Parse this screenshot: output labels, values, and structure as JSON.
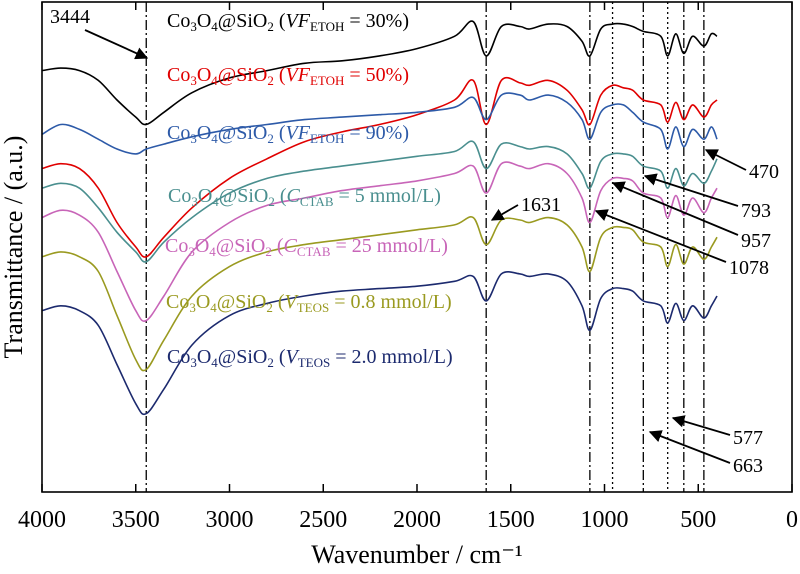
{
  "chart_data": {
    "type": "line",
    "title": "",
    "xlabel": "Wavenumber / cm⁻¹",
    "ylabel": "Transmittance / (a.u.)",
    "xlim": [
      4000,
      0
    ],
    "x_reversed": true,
    "xticks": [
      "4000",
      "3500",
      "3000",
      "2500",
      "2000",
      "1500",
      "1000",
      "500",
      "0"
    ],
    "y_ticks_shown": false,
    "grid": false,
    "reference_lines": [
      {
        "x": 3444,
        "style": "dash-dot"
      },
      {
        "x": 1631,
        "style": "dash-dot"
      },
      {
        "x": 1078,
        "style": "dash-dot"
      },
      {
        "x": 957,
        "style": "dot"
      },
      {
        "x": 793,
        "style": "dash-dot"
      },
      {
        "x": 663,
        "style": "dot"
      },
      {
        "x": 577,
        "style": "dash-dot"
      },
      {
        "x": 470,
        "style": "dash-dot"
      }
    ],
    "x": [
      4000,
      3900,
      3800,
      3700,
      3600,
      3500,
      3444,
      3350,
      3200,
      3000,
      2800,
      2600,
      2400,
      2200,
      2000,
      1800,
      1700,
      1631,
      1550,
      1450,
      1400,
      1300,
      1200,
      1120,
      1078,
      1020,
      957,
      900,
      850,
      793,
      700,
      663,
      620,
      577,
      530,
      470,
      430,
      400
    ],
    "series": [
      {
        "name_parts": [
          "Co",
          "3",
          "O",
          "4",
          "@SiO",
          "2",
          " (",
          "VF",
          "ETOH",
          " = 30%)"
        ],
        "color": "#000000",
        "values": [
          0.86,
          0.865,
          0.86,
          0.84,
          0.8,
          0.765,
          0.75,
          0.775,
          0.815,
          0.845,
          0.86,
          0.875,
          0.88,
          0.89,
          0.905,
          0.93,
          0.96,
          0.89,
          0.95,
          0.95,
          0.945,
          0.955,
          0.95,
          0.92,
          0.89,
          0.945,
          0.955,
          0.955,
          0.95,
          0.94,
          0.93,
          0.89,
          0.935,
          0.895,
          0.93,
          0.91,
          0.935,
          0.93
        ]
      },
      {
        "name_parts": [
          "Co",
          "3",
          "O",
          "4",
          "@SiO",
          "2",
          " (",
          "VF",
          "ETOH",
          " = 50%)"
        ],
        "color": "#e00000",
        "values": [
          0.66,
          0.67,
          0.66,
          0.62,
          0.55,
          0.5,
          0.48,
          0.52,
          0.58,
          0.64,
          0.68,
          0.715,
          0.735,
          0.75,
          0.77,
          0.8,
          0.84,
          0.75,
          0.84,
          0.835,
          0.83,
          0.84,
          0.82,
          0.78,
          0.75,
          0.81,
          0.83,
          0.825,
          0.82,
          0.8,
          0.79,
          0.755,
          0.795,
          0.76,
          0.79,
          0.765,
          0.79,
          0.8
        ]
      },
      {
        "name_parts": [
          "Co",
          "3",
          "O",
          "4",
          "@SiO",
          "2",
          " (",
          "VF",
          "ETOH",
          " = 90%)"
        ],
        "color": "#2d5aa8",
        "values": [
          0.73,
          0.75,
          0.74,
          0.72,
          0.7,
          0.69,
          0.7,
          0.71,
          0.725,
          0.74,
          0.75,
          0.76,
          0.765,
          0.77,
          0.775,
          0.785,
          0.805,
          0.76,
          0.81,
          0.81,
          0.8,
          0.81,
          0.795,
          0.76,
          0.72,
          0.775,
          0.79,
          0.79,
          0.775,
          0.755,
          0.74,
          0.7,
          0.745,
          0.705,
          0.74,
          0.72,
          0.745,
          0.72
        ]
      },
      {
        "name_parts": [
          "Co",
          "3",
          "O",
          "4",
          "@SiO",
          "2",
          " (",
          "C",
          "CTAB",
          " = 5 mmol/L)"
        ],
        "color": "#4a8f8f",
        "values": [
          0.62,
          0.63,
          0.62,
          0.58,
          0.53,
          0.49,
          0.47,
          0.51,
          0.56,
          0.61,
          0.64,
          0.655,
          0.665,
          0.675,
          0.685,
          0.695,
          0.715,
          0.66,
          0.71,
          0.705,
          0.7,
          0.705,
          0.69,
          0.65,
          0.62,
          0.675,
          0.69,
          0.69,
          0.685,
          0.665,
          0.655,
          0.62,
          0.66,
          0.625,
          0.65,
          0.63,
          0.655,
          0.68
        ]
      },
      {
        "name_parts": [
          "Co",
          "3",
          "O",
          "4",
          "@SiO",
          "2",
          " (",
          "C",
          "CTAB",
          " = 25 mmol/L)"
        ],
        "color": "#c865b8",
        "values": [
          0.56,
          0.575,
          0.565,
          0.53,
          0.45,
          0.37,
          0.35,
          0.4,
          0.49,
          0.55,
          0.585,
          0.6,
          0.615,
          0.625,
          0.635,
          0.65,
          0.665,
          0.61,
          0.67,
          0.665,
          0.66,
          0.67,
          0.65,
          0.6,
          0.55,
          0.615,
          0.64,
          0.64,
          0.635,
          0.61,
          0.6,
          0.56,
          0.605,
          0.565,
          0.6,
          0.57,
          0.6,
          0.62
        ]
      },
      {
        "name_parts": [
          "Co",
          "3",
          "O",
          "4",
          "@SiO",
          "2",
          " (",
          "V",
          "TEOS",
          " = 0.8 mmol/L)"
        ],
        "color": "#9a9a20",
        "values": [
          0.48,
          0.49,
          0.48,
          0.45,
          0.36,
          0.27,
          0.25,
          0.31,
          0.4,
          0.46,
          0.49,
          0.505,
          0.515,
          0.525,
          0.535,
          0.545,
          0.56,
          0.505,
          0.555,
          0.555,
          0.55,
          0.56,
          0.545,
          0.5,
          0.45,
          0.52,
          0.54,
          0.54,
          0.535,
          0.51,
          0.5,
          0.46,
          0.505,
          0.465,
          0.5,
          0.475,
          0.5,
          0.52
        ]
      },
      {
        "name_parts": [
          "Co",
          "3",
          "O",
          "4",
          "@SiO",
          "2",
          " (",
          "V",
          "TEOS",
          " = 2.0 mmol/L)"
        ],
        "color": "#1c2a6e",
        "values": [
          0.37,
          0.38,
          0.37,
          0.34,
          0.26,
          0.18,
          0.16,
          0.21,
          0.3,
          0.36,
          0.385,
          0.4,
          0.41,
          0.415,
          0.42,
          0.43,
          0.44,
          0.39,
          0.445,
          0.445,
          0.44,
          0.445,
          0.43,
          0.38,
          0.33,
          0.395,
          0.415,
          0.415,
          0.41,
          0.39,
          0.38,
          0.345,
          0.385,
          0.35,
          0.38,
          0.355,
          0.38,
          0.4
        ]
      }
    ],
    "annotations": [
      {
        "text": "3444",
        "target_x": 3444
      },
      {
        "text": "1631",
        "target_x": 1631
      },
      {
        "text": "1078",
        "target_x": 1078
      },
      {
        "text": "957",
        "target_x": 957
      },
      {
        "text": "793",
        "target_x": 793
      },
      {
        "text": "470",
        "target_x": 470
      },
      {
        "text": "577",
        "target_x": 577
      },
      {
        "text": "663",
        "target_x": 663
      }
    ]
  }
}
